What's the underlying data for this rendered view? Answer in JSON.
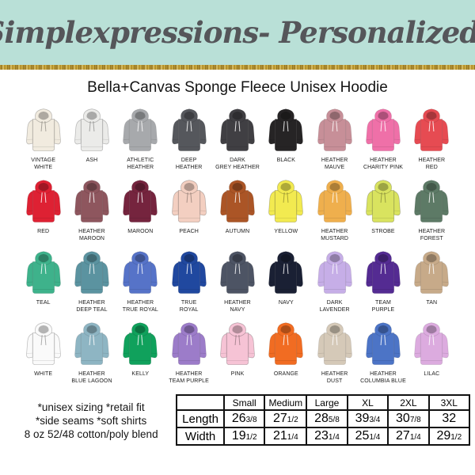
{
  "header": {
    "brand": "Simplexpressions- Personalized!",
    "bg": "#b9e0d7",
    "text_color": "#55565a"
  },
  "title": "Bella+Canvas Sponge Fleece Unisex Hoodie",
  "swatch_rows": [
    [
      {
        "name": "VINTAGE WHITE",
        "hex": "#f1ebdf"
      },
      {
        "name": "ASH",
        "hex": "#ebebe9"
      },
      {
        "name": "ATHLETIC HEATHER",
        "hex": "#a7a9ac"
      },
      {
        "name": "DEEP HEATHER",
        "hex": "#55575c"
      },
      {
        "name": "DARK GREY HEATHER",
        "hex": "#403f43"
      },
      {
        "name": "BLACK",
        "hex": "#262425"
      },
      {
        "name": "HEATHER MAUVE",
        "hex": "#c78f98"
      },
      {
        "name": "HEATHER CHARITY PINK",
        "hex": "#ef70a8"
      },
      {
        "name": "HEATHER RED",
        "hex": "#e64b52"
      }
    ],
    [
      {
        "name": "RED",
        "hex": "#de2133"
      },
      {
        "name": "HEATHER MAROON",
        "hex": "#8e565e"
      },
      {
        "name": "MAROON",
        "hex": "#75243e"
      },
      {
        "name": "PEACH",
        "hex": "#f3cfc1"
      },
      {
        "name": "AUTUMN",
        "hex": "#ab5526"
      },
      {
        "name": "YELLOW",
        "hex": "#f2ea50"
      },
      {
        "name": "HEATHER MUSTARD",
        "hex": "#efaf4d"
      },
      {
        "name": "STROBE",
        "hex": "#d9e35f"
      },
      {
        "name": "HEATHER FOREST",
        "hex": "#5d7a66"
      }
    ],
    [
      {
        "name": "TEAL",
        "hex": "#3eb28b"
      },
      {
        "name": "HEATHER DEEP TEAL",
        "hex": "#5b93a0"
      },
      {
        "name": "HEATHER TRUE ROYAL",
        "hex": "#5673c8"
      },
      {
        "name": "TRUE ROYAL",
        "hex": "#20489f"
      },
      {
        "name": "HEATHER NAVY",
        "hex": "#4d5464"
      },
      {
        "name": "NAVY",
        "hex": "#1a2034"
      },
      {
        "name": "DARK LAVENDER",
        "hex": "#c6aee7"
      },
      {
        "name": "TEAM PURPLE",
        "hex": "#542b92"
      },
      {
        "name": "TAN",
        "hex": "#c7aa89"
      }
    ],
    [
      {
        "name": "WHITE",
        "hex": "#fafafa"
      },
      {
        "name": "HEATHER BLUE LAGOON",
        "hex": "#8eb5c3"
      },
      {
        "name": "KELLY",
        "hex": "#10a15c"
      },
      {
        "name": "HEATHER TEAM PURPLE",
        "hex": "#9c7cc9"
      },
      {
        "name": "PINK",
        "hex": "#f6c3d5"
      },
      {
        "name": "ORANGE",
        "hex": "#f16c22"
      },
      {
        "name": "HEATHER DUST",
        "hex": "#d5c9b8"
      },
      {
        "name": "HEATHER COLUMBIA BLUE",
        "hex": "#4c74c6"
      },
      {
        "name": "LILAC",
        "hex": "#dcabdf"
      }
    ]
  ],
  "notes": {
    "line1": "*unisex sizing *retail fit",
    "line2": "*side seams  *soft shirts",
    "line3": "8 oz 52/48 cotton/poly blend"
  },
  "size_table": {
    "columns": [
      "Small",
      "Medium",
      "Large",
      "XL",
      "2XL",
      "3XL"
    ],
    "rows": [
      {
        "label": "Length",
        "values": [
          {
            "whole": "26",
            "frac": "3/8"
          },
          {
            "whole": "27",
            "frac": "1/2"
          },
          {
            "whole": "28",
            "frac": "5/8"
          },
          {
            "whole": "39",
            "frac": "3/4"
          },
          {
            "whole": "30",
            "frac": "7/8"
          },
          {
            "whole": "32",
            "frac": ""
          }
        ]
      },
      {
        "label": "Width",
        "values": [
          {
            "whole": "19",
            "frac": "1/2"
          },
          {
            "whole": "21",
            "frac": "1/4"
          },
          {
            "whole": "23",
            "frac": "1/4"
          },
          {
            "whole": "25",
            "frac": "1/4"
          },
          {
            "whole": "27",
            "frac": "1/4"
          },
          {
            "whole": "29",
            "frac": "1/2"
          }
        ]
      }
    ]
  },
  "chart_data": {
    "type": "table",
    "title": "Bella+Canvas Sponge Fleece Unisex Hoodie size chart",
    "categories": [
      "Small",
      "Medium",
      "Large",
      "XL",
      "2XL",
      "3XL"
    ],
    "series": [
      {
        "name": "Length",
        "values": [
          26.375,
          27.5,
          28.625,
          39.75,
          30.875,
          32
        ]
      },
      {
        "name": "Width",
        "values": [
          19.5,
          21.25,
          23.25,
          25.25,
          27.25,
          29.5
        ]
      }
    ]
  }
}
